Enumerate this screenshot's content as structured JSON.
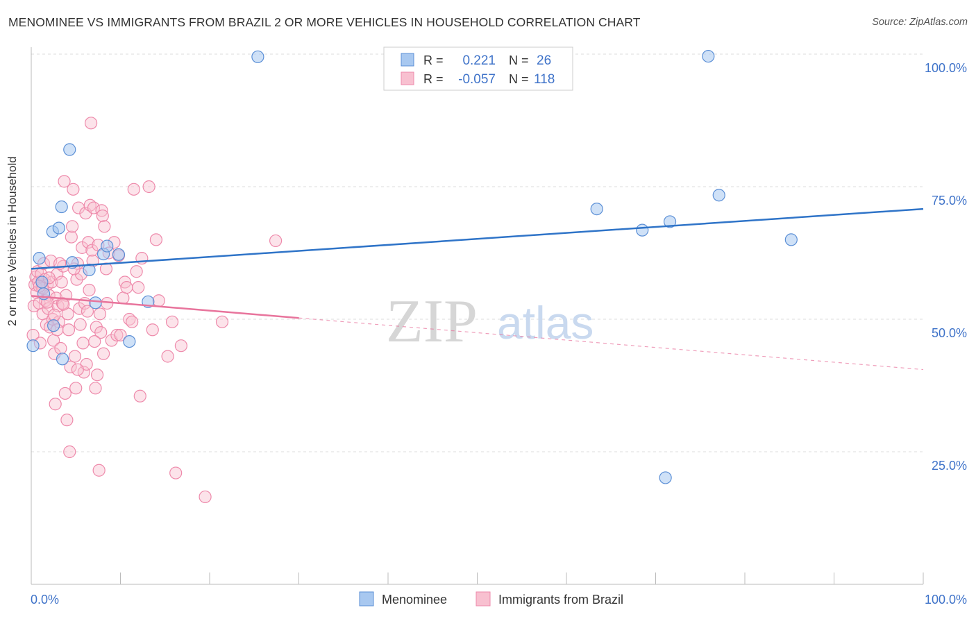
{
  "title": "MENOMINEE VS IMMIGRANTS FROM BRAZIL 2 OR MORE VEHICLES IN HOUSEHOLD CORRELATION CHART",
  "source": "Source: ZipAtlas.com",
  "watermark": {
    "zip": "ZIP",
    "atlas": "atlas"
  },
  "legend_box": {
    "rows": [
      {
        "r_label": "R =",
        "r_value": "0.221",
        "n_label": "N =",
        "n_value": "26"
      },
      {
        "r_label": "R =",
        "r_value": "-0.057",
        "n_label": "N =",
        "n_value": "118"
      }
    ]
  },
  "colors": {
    "menominee_fill": "#a8c8f0",
    "menominee_stroke": "#5b8fd6",
    "menominee_line": "#2f74c8",
    "brazil_fill": "#f8c0d0",
    "brazil_stroke": "#ee8aab",
    "brazil_line": "#e8749c",
    "value_text": "#3f73c9",
    "grid": "#dddddd"
  },
  "chart_data": {
    "type": "scatter",
    "xlabel": "",
    "ylabel": "2 or more Vehicles in Household",
    "xlim": [
      0,
      100
    ],
    "ylim": [
      0,
      100
    ],
    "x_tick_labels": [
      "0.0%",
      "100.0%"
    ],
    "y_tick_labels": [
      "100.0%",
      "75.0%",
      "50.0%",
      "25.0%"
    ],
    "y_ticks": [
      100,
      75,
      50,
      25
    ],
    "grid": true,
    "legend_position": "bottom-center",
    "series": [
      {
        "name": "Menominee",
        "r": 0.221,
        "n": 26,
        "trend": {
          "x": [
            0,
            100
          ],
          "y": [
            59.5,
            70.8
          ],
          "dashed_from": null
        },
        "points": [
          [
            0.2,
            45.0
          ],
          [
            0.9,
            61.5
          ],
          [
            1.4,
            54.8
          ],
          [
            2.5,
            48.8
          ],
          [
            3.5,
            42.5
          ],
          [
            2.4,
            66.5
          ],
          [
            3.1,
            67.2
          ],
          [
            3.4,
            71.2
          ],
          [
            4.3,
            82.0
          ],
          [
            4.6,
            60.7
          ],
          [
            6.5,
            59.3
          ],
          [
            7.2,
            53.1
          ],
          [
            8.1,
            62.3
          ],
          [
            8.5,
            63.8
          ],
          [
            9.8,
            62.2
          ],
          [
            11.0,
            45.8
          ],
          [
            13.1,
            53.3
          ],
          [
            25.4,
            99.5
          ],
          [
            75.9,
            99.6
          ],
          [
            63.4,
            70.8
          ],
          [
            68.5,
            66.8
          ],
          [
            71.6,
            68.4
          ],
          [
            77.1,
            73.4
          ],
          [
            85.2,
            65.0
          ],
          [
            71.1,
            20.1
          ],
          [
            1.2,
            57.0
          ]
        ]
      },
      {
        "name": "Immigrants from Brazil",
        "r": -0.057,
        "n": 118,
        "trend": {
          "x": [
            0,
            100
          ],
          "y": [
            54.4,
            40.5
          ],
          "dashed_from": 30
        },
        "points": [
          [
            0.2,
            47.0
          ],
          [
            0.3,
            52.5
          ],
          [
            0.4,
            56.5
          ],
          [
            0.5,
            58.0
          ],
          [
            0.6,
            55.0
          ],
          [
            0.7,
            59.0
          ],
          [
            0.8,
            57.0
          ],
          [
            0.9,
            53.0
          ],
          [
            1.0,
            45.5
          ],
          [
            1.1,
            58.5
          ],
          [
            1.2,
            56.0
          ],
          [
            1.3,
            51.0
          ],
          [
            1.4,
            60.5
          ],
          [
            1.5,
            57.5
          ],
          [
            1.6,
            53.5
          ],
          [
            1.7,
            49.0
          ],
          [
            1.8,
            56.5
          ],
          [
            1.9,
            52.0
          ],
          [
            2.0,
            54.5
          ],
          [
            2.1,
            48.5
          ],
          [
            2.2,
            61.0
          ],
          [
            2.3,
            57.0
          ],
          [
            2.4,
            50.0
          ],
          [
            2.5,
            46.0
          ],
          [
            2.6,
            43.5
          ],
          [
            2.7,
            34.0
          ],
          [
            2.8,
            54.0
          ],
          [
            2.9,
            58.5
          ],
          [
            3.0,
            52.5
          ],
          [
            3.1,
            49.5
          ],
          [
            3.3,
            44.5
          ],
          [
            3.4,
            57.0
          ],
          [
            3.5,
            53.0
          ],
          [
            3.6,
            60.0
          ],
          [
            3.7,
            76.0
          ],
          [
            3.8,
            36.0
          ],
          [
            3.9,
            54.5
          ],
          [
            4.0,
            31.0
          ],
          [
            4.1,
            51.0
          ],
          [
            4.2,
            48.0
          ],
          [
            4.3,
            25.0
          ],
          [
            4.4,
            41.0
          ],
          [
            4.5,
            65.5
          ],
          [
            4.6,
            67.5
          ],
          [
            4.7,
            74.5
          ],
          [
            4.9,
            43.0
          ],
          [
            5.0,
            37.0
          ],
          [
            5.1,
            57.5
          ],
          [
            5.2,
            60.5
          ],
          [
            5.3,
            71.0
          ],
          [
            5.4,
            52.0
          ],
          [
            5.5,
            49.0
          ],
          [
            5.6,
            58.5
          ],
          [
            5.7,
            63.5
          ],
          [
            5.8,
            45.5
          ],
          [
            5.9,
            40.0
          ],
          [
            6.0,
            53.0
          ],
          [
            6.1,
            70.0
          ],
          [
            6.2,
            41.5
          ],
          [
            6.3,
            51.5
          ],
          [
            6.4,
            64.5
          ],
          [
            6.6,
            71.5
          ],
          [
            6.7,
            87.0
          ],
          [
            6.8,
            63.0
          ],
          [
            6.9,
            61.0
          ],
          [
            7.0,
            71.0
          ],
          [
            7.2,
            37.0
          ],
          [
            7.3,
            48.5
          ],
          [
            7.4,
            39.5
          ],
          [
            7.5,
            64.0
          ],
          [
            7.6,
            21.5
          ],
          [
            7.7,
            51.0
          ],
          [
            7.8,
            47.5
          ],
          [
            7.9,
            70.5
          ],
          [
            8.0,
            69.5
          ],
          [
            8.1,
            43.5
          ],
          [
            8.2,
            67.5
          ],
          [
            8.4,
            59.5
          ],
          [
            8.5,
            53.0
          ],
          [
            8.7,
            62.5
          ],
          [
            9.0,
            46.0
          ],
          [
            9.3,
            64.5
          ],
          [
            9.6,
            47.0
          ],
          [
            9.8,
            62.0
          ],
          [
            10.0,
            47.0
          ],
          [
            10.3,
            54.0
          ],
          [
            10.5,
            57.0
          ],
          [
            10.7,
            56.0
          ],
          [
            11.0,
            50.0
          ],
          [
            11.3,
            49.5
          ],
          [
            11.5,
            74.5
          ],
          [
            11.8,
            59.0
          ],
          [
            12.0,
            56.0
          ],
          [
            12.2,
            35.5
          ],
          [
            12.4,
            61.5
          ],
          [
            13.2,
            75.0
          ],
          [
            13.6,
            48.0
          ],
          [
            14.0,
            65.0
          ],
          [
            14.3,
            53.5
          ],
          [
            15.3,
            43.0
          ],
          [
            15.8,
            49.5
          ],
          [
            16.2,
            21.0
          ],
          [
            16.8,
            45.0
          ],
          [
            19.5,
            16.5
          ],
          [
            21.4,
            49.5
          ],
          [
            27.4,
            64.8
          ],
          [
            1.3,
            55.8
          ],
          [
            2.0,
            57.8
          ],
          [
            2.6,
            50.8
          ],
          [
            3.2,
            60.5
          ],
          [
            4.8,
            59.5
          ],
          [
            6.5,
            55.5
          ],
          [
            1.8,
            53.2
          ],
          [
            0.9,
            56.2
          ],
          [
            2.9,
            48.0
          ],
          [
            3.6,
            52.8
          ],
          [
            5.2,
            40.5
          ],
          [
            7.1,
            45.8
          ]
        ]
      }
    ]
  },
  "bottom_legend": {
    "items": [
      "Menominee",
      "Immigrants from Brazil"
    ]
  }
}
